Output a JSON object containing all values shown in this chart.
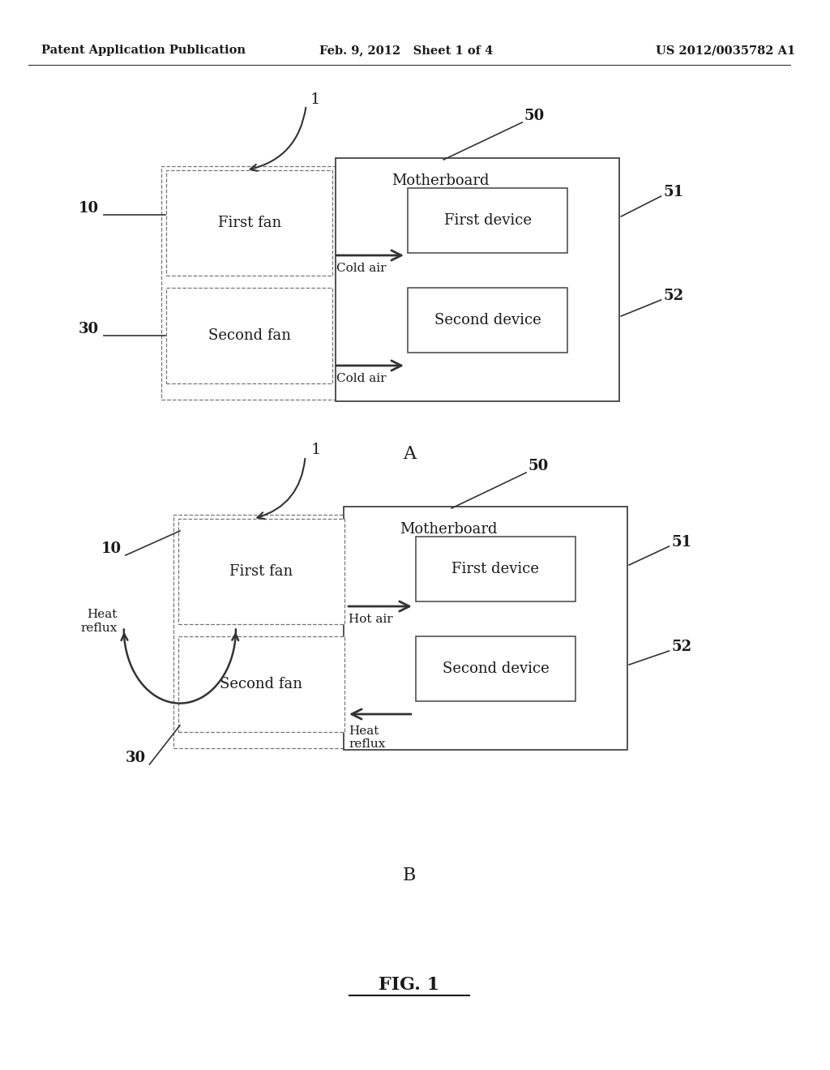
{
  "bg_color": "#ffffff",
  "text_color": "#1a1a1a",
  "header_left": "Patent Application Publication",
  "header_mid": "Feb. 9, 2012   Sheet 1 of 4",
  "header_right": "US 2012/0035782 A1",
  "footer": "FIG. 1",
  "diagram_A_label": "A",
  "diagram_B_label": "B",
  "line_color": "#333333",
  "box_edge_color": "#555555"
}
